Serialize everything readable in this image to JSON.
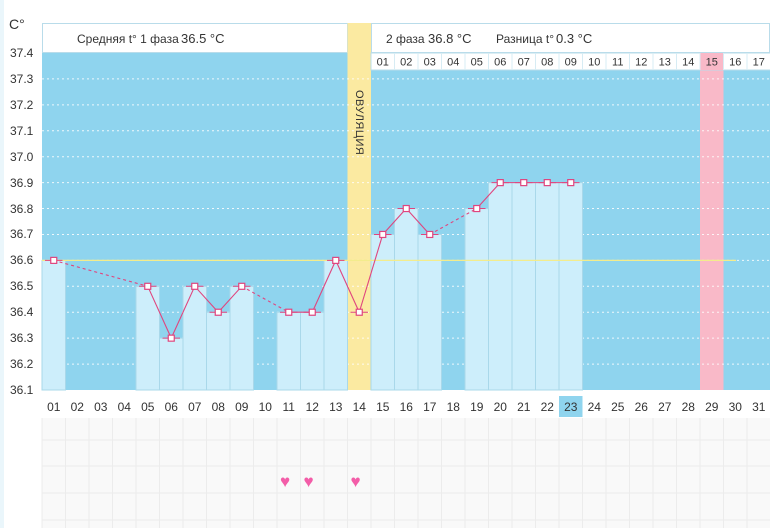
{
  "unit_label": "C°",
  "phase1": {
    "label": "Средняя t° 1 фаза",
    "value": "36.5 °C"
  },
  "phase2": {
    "label": "2 фаза",
    "value": "36.8 °C"
  },
  "difference": {
    "label": "Разница t°",
    "value": "0.3 °C"
  },
  "ovulation_label": "ОВУЛЯЦИЯ",
  "colors": {
    "chart_bg": "#8fd4ee",
    "bar_fill": "#cdeefb",
    "bar_stroke": "#a9d8ea",
    "ovulation": "#fbeaa1",
    "highlight_day": "#f9b9c8",
    "line": "#e0457e",
    "avg_line": "#f3ec8c",
    "today_cell": "#8fd4ee",
    "heart": "#f35da8"
  },
  "chart_data": {
    "type": "bar",
    "title": "",
    "xlabel": "",
    "ylabel": "C°",
    "ylim": [
      36.1,
      37.4
    ],
    "yticks": [
      "37.4",
      "37.3",
      "37.2",
      "37.1",
      "37.0",
      "36.9",
      "36.8",
      "36.7",
      "36.6",
      "36.5",
      "36.4",
      "36.3",
      "36.2",
      "36.1"
    ],
    "categories": [
      "01",
      "02",
      "03",
      "04",
      "05",
      "06",
      "07",
      "08",
      "09",
      "10",
      "11",
      "12",
      "13",
      "14",
      "15",
      "16",
      "17",
      "18",
      "19",
      "20",
      "21",
      "22",
      "23",
      "24",
      "25",
      "26",
      "27",
      "28",
      "29",
      "30",
      "31"
    ],
    "cycle_days_after_ovulation": [
      "01",
      "02",
      "03",
      "04",
      "05",
      "06",
      "07",
      "08",
      "09",
      "10",
      "11",
      "12",
      "13",
      "14",
      "15",
      "16",
      "17"
    ],
    "series": [
      {
        "values": [
          36.6,
          null,
          null,
          null,
          36.5,
          36.3,
          36.5,
          36.4,
          36.5,
          null,
          36.4,
          36.4,
          36.6,
          36.4,
          36.7,
          36.8,
          36.7,
          null,
          36.8,
          36.9,
          36.9,
          36.9,
          36.9,
          null,
          null,
          null,
          null,
          null,
          null,
          null,
          null
        ]
      }
    ],
    "average_line": 36.6,
    "ovulation_day": "14",
    "highlight_day": "29",
    "today": "23",
    "heart_days": [
      "11",
      "12",
      "14"
    ],
    "grid": true
  }
}
